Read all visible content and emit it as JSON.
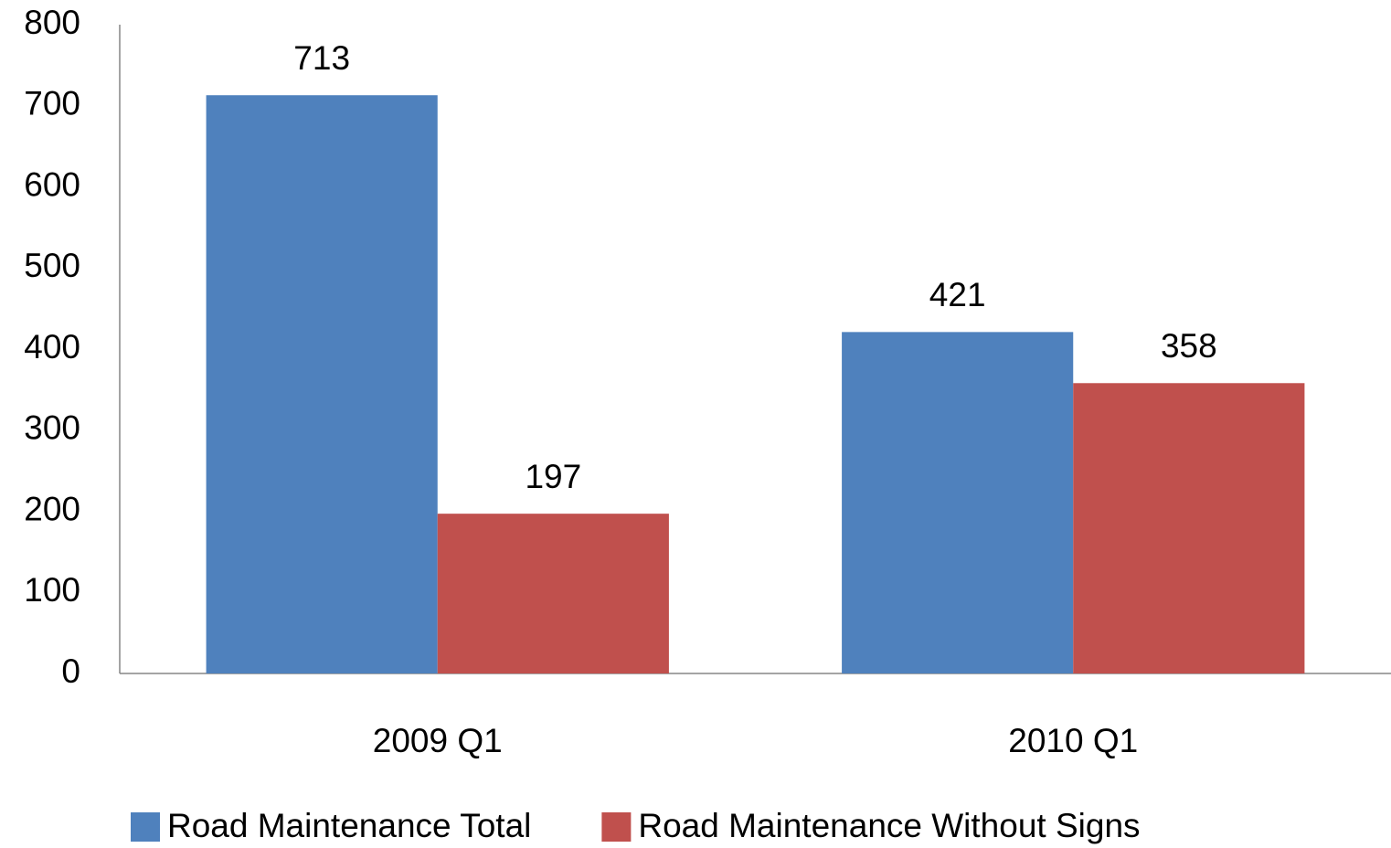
{
  "chart_data": {
    "type": "bar",
    "categories": [
      "2009 Q1",
      "2010 Q1"
    ],
    "series": [
      {
        "name": "Road Maintenance Total",
        "color": "#4f81bd",
        "values": [
          713,
          421
        ]
      },
      {
        "name": "Road Maintenance Without Signs",
        "color": "#c0504d",
        "values": [
          197,
          358
        ]
      }
    ],
    "ylim": [
      0,
      800
    ],
    "yticks": [
      0,
      100,
      200,
      300,
      400,
      500,
      600,
      700,
      800
    ],
    "grid": false,
    "legend": "bottom"
  }
}
